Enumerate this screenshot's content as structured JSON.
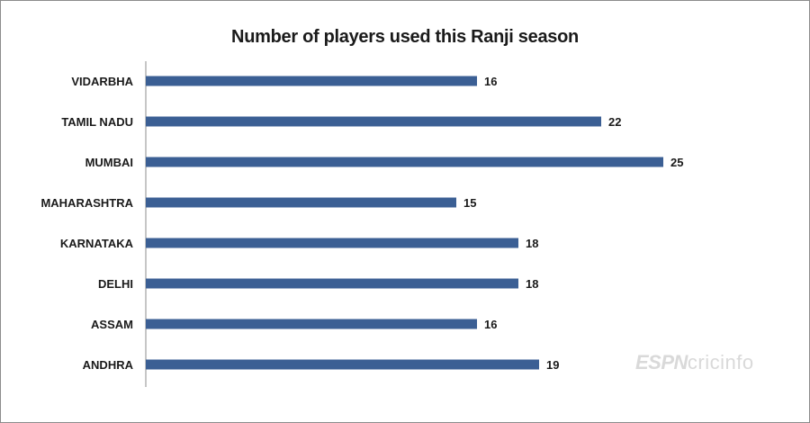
{
  "chart_data": {
    "type": "bar",
    "orientation": "horizontal",
    "title": "Number of players used this Ranji season",
    "categories": [
      "VIDARBHA",
      "TAMIL NADU",
      "MUMBAI",
      "MAHARASHTRA",
      "KARNATAKA",
      "DELHI",
      "ASSAM",
      "ANDHRA"
    ],
    "values": [
      16,
      22,
      25,
      15,
      18,
      18,
      16,
      19
    ],
    "xlim": [
      0,
      25
    ],
    "grid": false,
    "data_labels": true,
    "bar_color": "#3b5f94"
  },
  "watermark": {
    "brand_a": "ESPN",
    "brand_b": "cricinfo"
  }
}
